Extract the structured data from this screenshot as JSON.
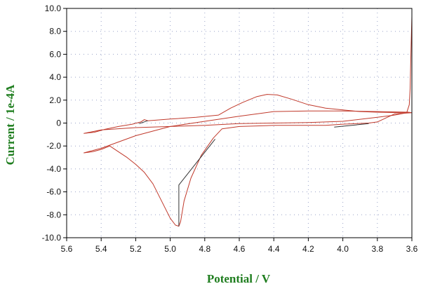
{
  "chart_data": {
    "type": "line",
    "title": "",
    "xlabel": "Potential / V",
    "ylabel": "Current / 1e-4A",
    "xlim": [
      5.6,
      3.6
    ],
    "ylim": [
      -10.0,
      10.0
    ],
    "x_reversed": true,
    "x_ticks": [
      "5.6",
      "5.4",
      "5.2",
      "5.0",
      "4.8",
      "4.6",
      "4.4",
      "4.2",
      "4.0",
      "3.8",
      "3.6"
    ],
    "y_ticks": [
      "10.0",
      "8.0",
      "6.0",
      "4.0",
      "2.0",
      "0",
      "-2.0",
      "-4.0",
      "-6.0",
      "-8.0",
      "-10.0"
    ],
    "grid": true,
    "legend": "none",
    "series": [
      {
        "color": "#c0392b",
        "points": [
          [
            3.6,
            9.3
          ],
          [
            3.605,
            6.5
          ],
          [
            3.61,
            3.0
          ],
          [
            3.615,
            1.6
          ],
          [
            3.63,
            0.9
          ],
          [
            3.7,
            0.7
          ],
          [
            3.8,
            0.5
          ],
          [
            4.0,
            0.15
          ],
          [
            4.2,
            0.05
          ],
          [
            4.4,
            0.0
          ],
          [
            4.6,
            -0.05
          ],
          [
            4.8,
            -0.2
          ],
          [
            5.0,
            -0.3
          ],
          [
            5.2,
            -0.4
          ],
          [
            5.4,
            -0.6
          ],
          [
            5.5,
            -0.9
          ],
          [
            5.44,
            -0.8
          ],
          [
            5.38,
            -0.55
          ],
          [
            5.3,
            -0.3
          ],
          [
            5.22,
            -0.1
          ],
          [
            5.17,
            0.1
          ],
          [
            5.15,
            0.3
          ],
          [
            5.13,
            0.2
          ],
          [
            5.0,
            0.35
          ],
          [
            4.85,
            0.5
          ],
          [
            4.72,
            0.7
          ],
          [
            4.65,
            1.3
          ],
          [
            4.58,
            1.8
          ],
          [
            4.5,
            2.3
          ],
          [
            4.44,
            2.5
          ],
          [
            4.38,
            2.45
          ],
          [
            4.3,
            2.1
          ],
          [
            4.2,
            1.6
          ],
          [
            4.1,
            1.3
          ],
          [
            4.0,
            1.15
          ],
          [
            3.9,
            1.0
          ],
          [
            3.8,
            0.95
          ],
          [
            3.7,
            0.92
          ],
          [
            3.62,
            0.9
          ]
        ]
      },
      {
        "color": "#c0392b",
        "points": [
          [
            3.6,
            0.9
          ],
          [
            3.7,
            0.8
          ],
          [
            3.8,
            0.1
          ],
          [
            3.85,
            0.0
          ],
          [
            4.0,
            -0.1
          ],
          [
            4.1,
            -0.2
          ],
          [
            4.2,
            -0.2
          ],
          [
            4.4,
            -0.2
          ],
          [
            4.6,
            -0.3
          ],
          [
            4.7,
            -0.5
          ],
          [
            4.75,
            -1.3
          ],
          [
            4.82,
            -2.8
          ],
          [
            4.88,
            -4.8
          ],
          [
            4.92,
            -6.8
          ],
          [
            4.94,
            -8.6
          ],
          [
            4.95,
            -9.0
          ],
          [
            4.97,
            -8.9
          ],
          [
            5.0,
            -8.3
          ],
          [
            5.05,
            -6.8
          ],
          [
            5.1,
            -5.3
          ],
          [
            5.15,
            -4.3
          ],
          [
            5.2,
            -3.6
          ],
          [
            5.25,
            -3.0
          ],
          [
            5.3,
            -2.5
          ],
          [
            5.35,
            -2.0
          ],
          [
            5.4,
            -2.3
          ],
          [
            5.45,
            -2.5
          ],
          [
            5.5,
            -2.6
          ],
          [
            5.4,
            -2.2
          ],
          [
            5.2,
            -1.1
          ],
          [
            5.0,
            -0.3
          ],
          [
            4.8,
            0.15
          ],
          [
            4.6,
            0.6
          ],
          [
            4.4,
            1.0
          ],
          [
            4.2,
            1.05
          ],
          [
            4.0,
            1.05
          ],
          [
            3.8,
            1.0
          ],
          [
            3.62,
            0.95
          ],
          [
            3.6,
            0.9
          ]
        ]
      },
      {
        "color": "#333333",
        "points": [
          [
            4.95,
            -9.0
          ],
          [
            4.95,
            -5.4
          ],
          [
            4.74,
            -1.4
          ]
        ]
      },
      {
        "color": "#333333",
        "points": [
          [
            4.05,
            -0.35
          ],
          [
            3.85,
            -0.05
          ]
        ]
      },
      {
        "color": "#333333",
        "points": [
          [
            5.18,
            -0.05
          ],
          [
            5.13,
            0.2
          ]
        ]
      }
    ]
  }
}
